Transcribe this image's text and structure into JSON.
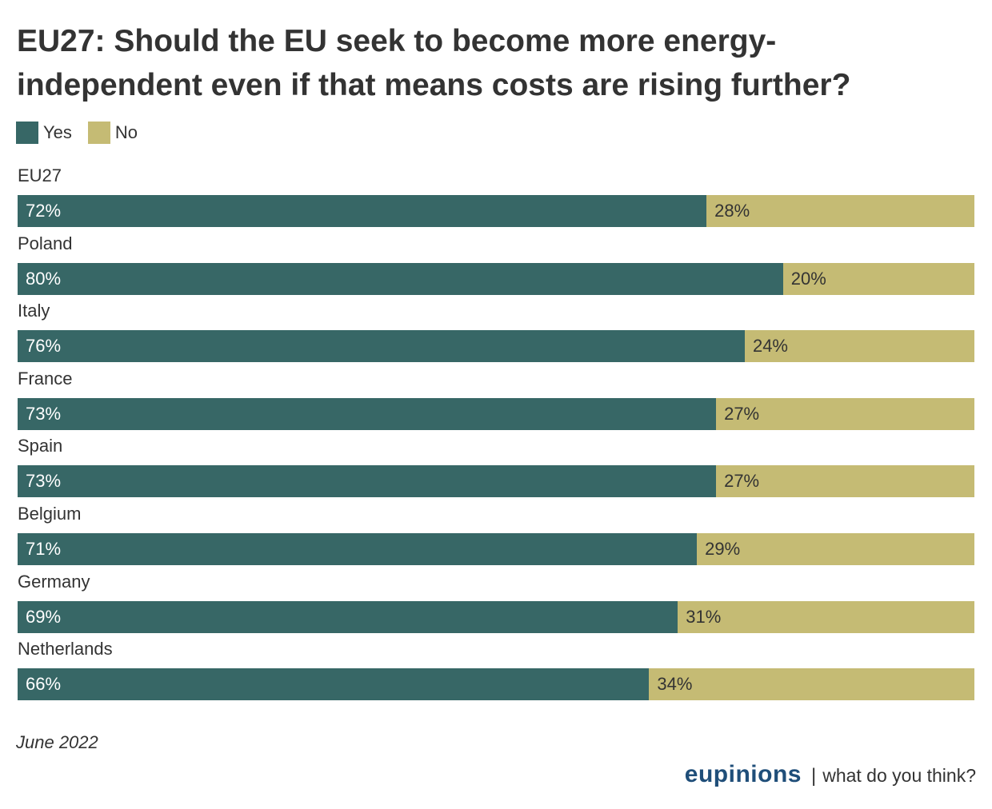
{
  "colors": {
    "yes": "#376766",
    "no": "#c5bb74",
    "brand": "#1f4e79",
    "text": "#333333"
  },
  "chart_data": {
    "type": "bar",
    "orientation": "horizontal",
    "stacked": true,
    "title": "EU27: Should the EU seek to become more energy-independent even if that means costs are rising further?",
    "legend": {
      "position": "top-left",
      "entries": [
        "Yes",
        "No"
      ]
    },
    "categories": [
      "EU27",
      "Poland",
      "Italy",
      "France",
      "Spain",
      "Belgium",
      "Germany",
      "Netherlands"
    ],
    "series": [
      {
        "name": "Yes",
        "values": [
          72,
          80,
          76,
          73,
          73,
          71,
          69,
          66
        ]
      },
      {
        "name": "No",
        "values": [
          28,
          20,
          24,
          27,
          27,
          29,
          31,
          34
        ]
      }
    ],
    "value_suffix": "%",
    "xlim": [
      0,
      100
    ],
    "grid": false
  },
  "footnote": "June 2022",
  "brand": {
    "name": "eupinions",
    "separator": "|",
    "tagline": "what do you think?"
  }
}
